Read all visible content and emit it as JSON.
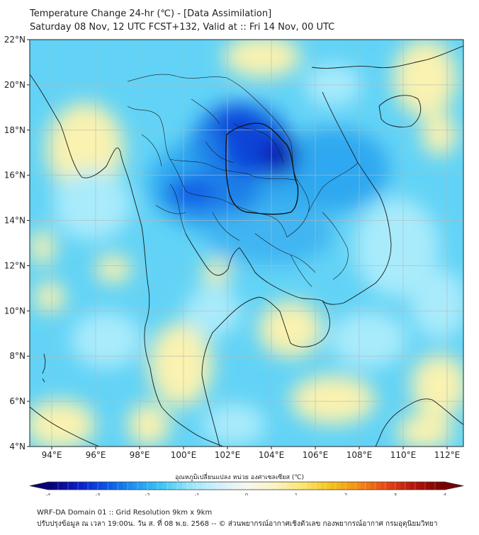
{
  "title_line1": "Temperature Change 24-hr (℃) - [Data Assimilation]",
  "title_line2": "Saturday 08 Nov, 12 UTC FCST+132, Valid at :: Fri 14 Nov, 00 UTC",
  "map": {
    "lat_ticks": [
      "22°N",
      "20°N",
      "18°N",
      "16°N",
      "14°N",
      "12°N",
      "10°N",
      "8°N",
      "6°N",
      "4°N"
    ],
    "lon_ticks": [
      "94°E",
      "96°E",
      "98°E",
      "100°E",
      "102°E",
      "104°E",
      "106°E",
      "108°E",
      "110°E",
      "112°E"
    ]
  },
  "colorbar": {
    "label": "อุณหภูมิเปลี่ยนแปลง หน่วย องศาเซลเซียส (℃)",
    "ticks": [
      "-4",
      "-3",
      "-2",
      "-1",
      "0",
      "1",
      "2",
      "3",
      "4"
    ],
    "colors": [
      "#08007a",
      "#0a1ec8",
      "#0a55e6",
      "#1e96f0",
      "#41c8f5",
      "#9be6fa",
      "#d2f0fa",
      "#f7f7ee",
      "#fbf3c3",
      "#fae66e",
      "#f6c31e",
      "#f58c14",
      "#e64614",
      "#b4140a",
      "#780000"
    ]
  },
  "footer_line1": "WRF-DA Domain 01 :: Grid Resolution 9km x 9km",
  "footer_line2": "ปรับปรุงข้อมูล ณ เวลา 19:00น. วัน ส. ที่ 08 พ.ย. 2568 -- © ส่วนพยากรณ์อากาศเชิงตัวเลข กองพยากรณ์อากาศ กรมอุตุนิยมวิทยา"
}
